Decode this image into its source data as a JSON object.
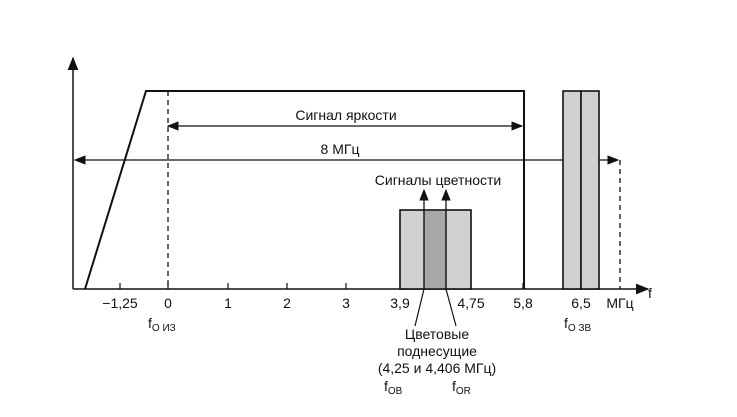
{
  "colors": {
    "ink": "#111111",
    "shade": "#d0d0d0",
    "shade_dark": "#a8a8a8"
  },
  "axis": {
    "f_label": "f",
    "unit": "МГц",
    "ticks": [
      "−1,25",
      "0",
      "1",
      "2",
      "3",
      "3,9",
      "4,75",
      "5,8",
      "6,5"
    ]
  },
  "labels": {
    "luma": "Сигнал яркости",
    "bandwidth": "8 МГц",
    "chroma": "Сигналы цветности",
    "subcarriers_line1": "Цветовые",
    "subcarriers_line2": "поднесущие",
    "subcarriers_line3": "(4,25 и 4,406 МГц)",
    "f_vision_main": "f",
    "f_vision_sub": "O ИЗ",
    "f_sound_main": "f",
    "f_sound_sub": "O ЗВ",
    "f_ob_main": "f",
    "f_ob_sub": "OB",
    "f_or_main": "f",
    "f_or_sub": "OR"
  }
}
